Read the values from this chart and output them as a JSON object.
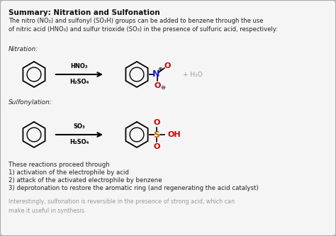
{
  "title": "Summary: Nitration and Sulfonation",
  "bg_color": "#f5f5f5",
  "border_color": "#aaaaaa",
  "title_color": "#111111",
  "body_color": "#222222",
  "gray_color": "#999999",
  "red_color": "#cc0000",
  "blue_color": "#1a1aff",
  "orange_color": "#cc6600",
  "intro_text": "The nitro (NO₂) and sulfonyl (SO₃H) groups can be added to benzene through the use\nof nitric acid (HNO₃) and sulfur trioxide (SO₃) in the presence of sulfuric acid, respectively:",
  "nitration_label": "Nitration:",
  "sulfonylation_label": "Sulfonylation:",
  "arrow_reagent1_top": "HNO₃",
  "arrow_reagent1_bot": "H₂SO₄",
  "arrow_reagent2_top": "SO₃",
  "arrow_reagent2_bot": "H₂SO₄",
  "water": "+ H₂O",
  "steps_header": "These reactions proceed through",
  "step1": "1) activation of the electrophile by acid",
  "step2": "2) attack of the activated electrophile by benzene",
  "step3": "3) deprotonation to restore the aromatic ring (and regenerating the acid catalyst)",
  "footer": "Interestingly, sulfonation is reversible in the presence of strong acid, which can\nmake it useful in synthesis."
}
